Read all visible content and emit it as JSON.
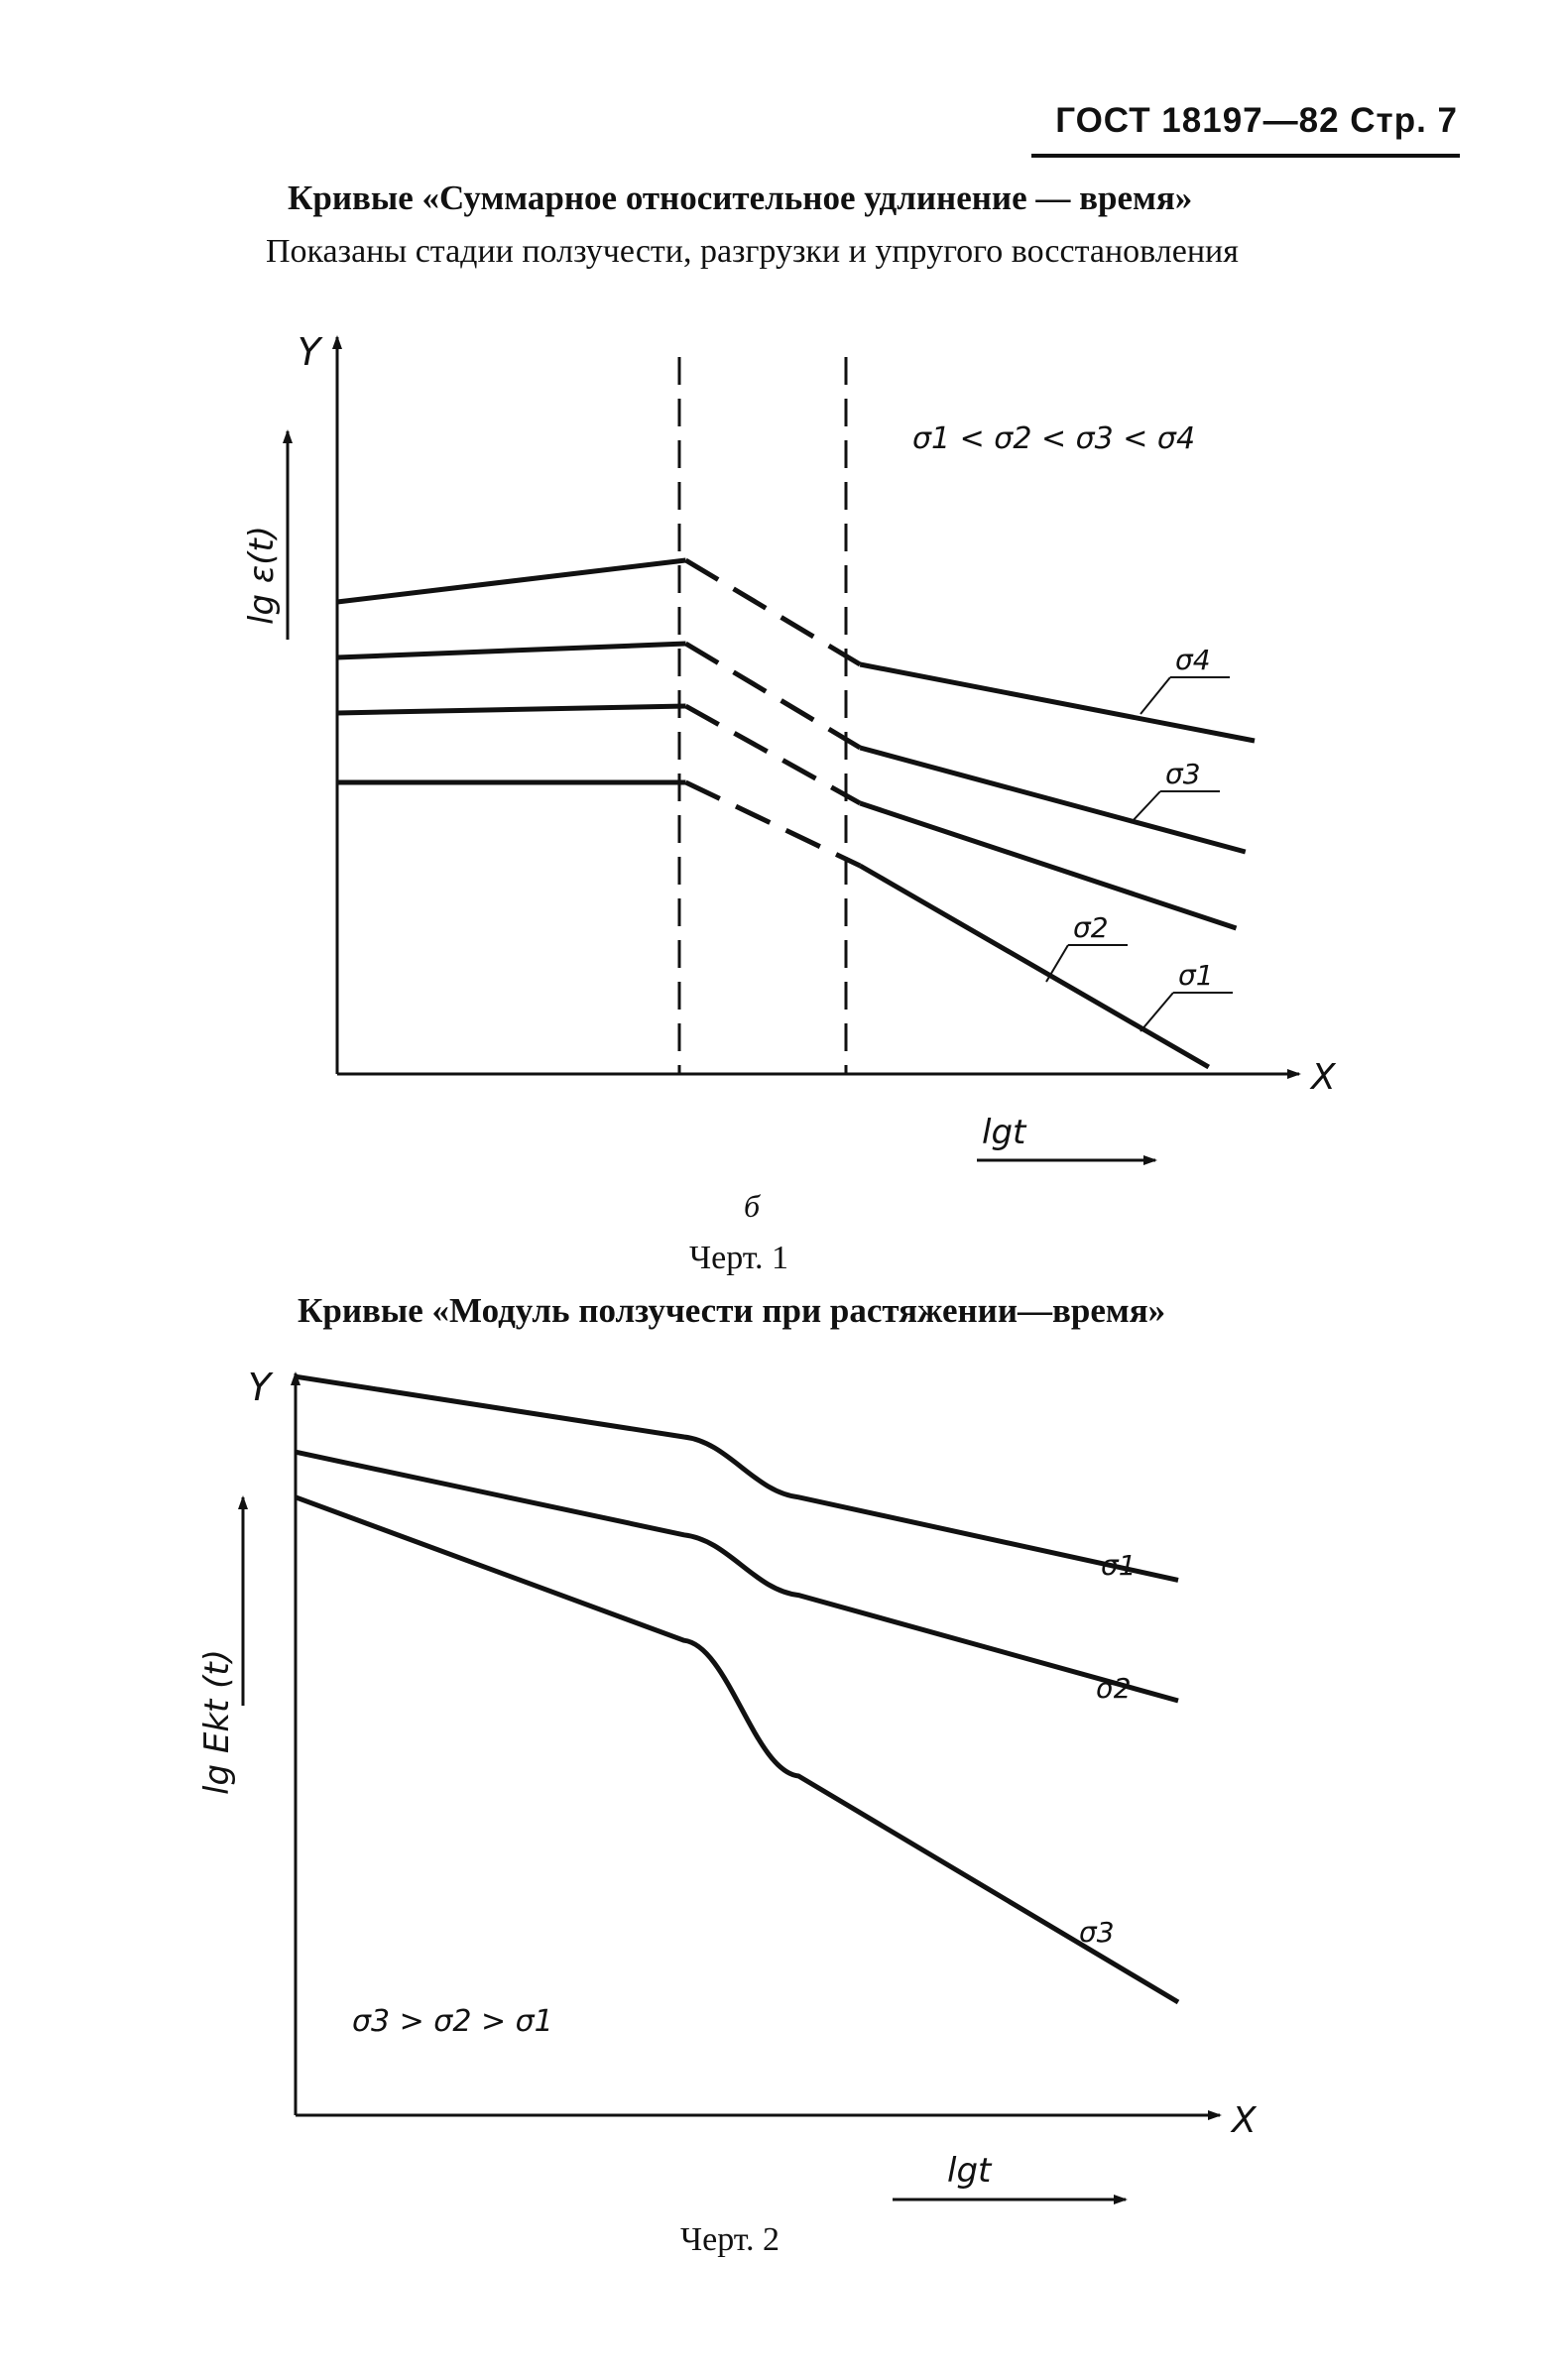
{
  "header": {
    "text": "ГОСТ 18197—82 Стр. 7"
  },
  "figure1": {
    "title": "Кривые «Суммарное относительное удлинение — время»",
    "subtitle": "Показаны стадии ползучести, разгрузки и упругого восстановления",
    "panel_letter": "б",
    "caption": "Черт. 1",
    "y_axis_letter": "Y",
    "x_axis_letter": "X",
    "y_quantity": "lg ε(t)",
    "x_quantity": "lgt",
    "inequality": "σ1 < σ2 < σ3 < σ4"
  },
  "figure2": {
    "title": "Кривые «Модуль ползучести при растяжении—время»",
    "caption": "Черт. 2",
    "y_axis_letter": "Y",
    "x_axis_letter": "X",
    "y_quantity": "lg Ekt (t)",
    "x_quantity": "lgt",
    "inequality": "σ3 > σ2 > σ1"
  },
  "chart_data": [
    {
      "type": "line",
      "title": "Кривые «Суммарное относительное удлинение — время»",
      "xlabel": "lgt",
      "ylabel": "lg ε(t)",
      "stages": [
        "creep",
        "unloading (dashed)",
        "elastic recovery"
      ],
      "series": [
        {
          "name": "σ4",
          "x": [
            0,
            0.38,
            0.57,
            1.0
          ],
          "y": [
            0.68,
            0.74,
            0.59,
            0.48
          ]
        },
        {
          "name": "σ3",
          "x": [
            0,
            0.38,
            0.57,
            0.99
          ],
          "y": [
            0.6,
            0.62,
            0.47,
            0.32
          ]
        },
        {
          "name": "σ2",
          "x": [
            0,
            0.38,
            0.57,
            0.98
          ],
          "y": [
            0.52,
            0.53,
            0.39,
            0.21
          ]
        },
        {
          "name": "σ1",
          "x": [
            0,
            0.38,
            0.57,
            0.95
          ],
          "y": [
            0.42,
            0.42,
            0.3,
            0.01
          ]
        }
      ]
    },
    {
      "type": "line",
      "title": "Кривые «Модуль ползучести при растяжении—время»",
      "xlabel": "lgt",
      "ylabel": "lg Ekt (t)",
      "series": [
        {
          "name": "σ1",
          "x": [
            0,
            0.44,
            0.57,
            1.0
          ],
          "y": [
            0.98,
            0.9,
            0.82,
            0.71
          ]
        },
        {
          "name": "σ2",
          "x": [
            0,
            0.44,
            0.57,
            1.0
          ],
          "y": [
            0.88,
            0.77,
            0.69,
            0.55
          ]
        },
        {
          "name": "σ3",
          "x": [
            0,
            0.44,
            0.57,
            1.0
          ],
          "y": [
            0.82,
            0.63,
            0.45,
            0.15
          ]
        }
      ]
    }
  ]
}
